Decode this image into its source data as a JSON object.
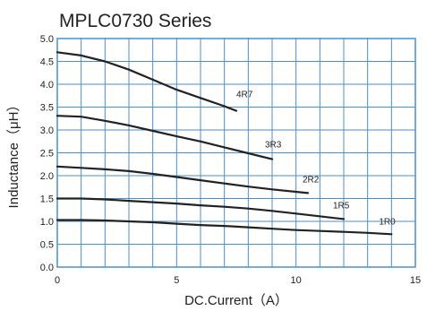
{
  "chart_data": {
    "type": "line",
    "title": "MPLC0730 Series",
    "xlabel": "DC.Current（A）",
    "ylabel": "Inductance（μH）",
    "xlim": [
      0,
      15
    ],
    "ylim": [
      0,
      5
    ],
    "grid": true,
    "legend": "none (inline series labels at line ends)",
    "x_ticks": [
      "0",
      "5",
      "10",
      "15"
    ],
    "y_ticks": [
      "0.0",
      "0.5",
      "1.0",
      "1.5",
      "2.0",
      "2.5",
      "3.0",
      "3.5",
      "4.0",
      "4.5",
      "5.0"
    ],
    "colors": {
      "grid": "#4a90c8",
      "line": "#222222"
    },
    "series": [
      {
        "name": "4R7",
        "x": [
          0,
          1,
          2,
          3,
          4,
          5,
          6,
          7,
          7.5
        ],
        "y": [
          4.7,
          4.63,
          4.5,
          4.32,
          4.1,
          3.88,
          3.7,
          3.52,
          3.42
        ]
      },
      {
        "name": "3R3",
        "x": [
          0,
          1,
          2,
          3,
          4,
          5,
          6,
          7,
          8,
          9
        ],
        "y": [
          3.31,
          3.29,
          3.2,
          3.1,
          2.98,
          2.86,
          2.75,
          2.62,
          2.49,
          2.36
        ]
      },
      {
        "name": "2R2",
        "x": [
          0,
          1,
          2,
          3,
          4,
          5,
          6,
          7,
          8,
          9,
          10.5
        ],
        "y": [
          2.2,
          2.17,
          2.14,
          2.1,
          2.04,
          1.97,
          1.9,
          1.83,
          1.76,
          1.7,
          1.62
        ]
      },
      {
        "name": "1R5",
        "x": [
          0,
          1,
          2,
          3,
          4,
          5,
          6,
          7,
          8,
          9,
          10,
          12
        ],
        "y": [
          1.5,
          1.5,
          1.48,
          1.45,
          1.42,
          1.39,
          1.35,
          1.32,
          1.28,
          1.23,
          1.17,
          1.05
        ]
      },
      {
        "name": "1R0",
        "x": [
          0,
          1,
          2,
          3,
          4,
          5,
          6,
          7,
          8,
          9,
          10,
          11,
          12,
          13,
          14
        ],
        "y": [
          1.03,
          1.03,
          1.02,
          1.0,
          0.98,
          0.95,
          0.92,
          0.9,
          0.87,
          0.84,
          0.81,
          0.79,
          0.77,
          0.75,
          0.72
        ]
      }
    ]
  }
}
